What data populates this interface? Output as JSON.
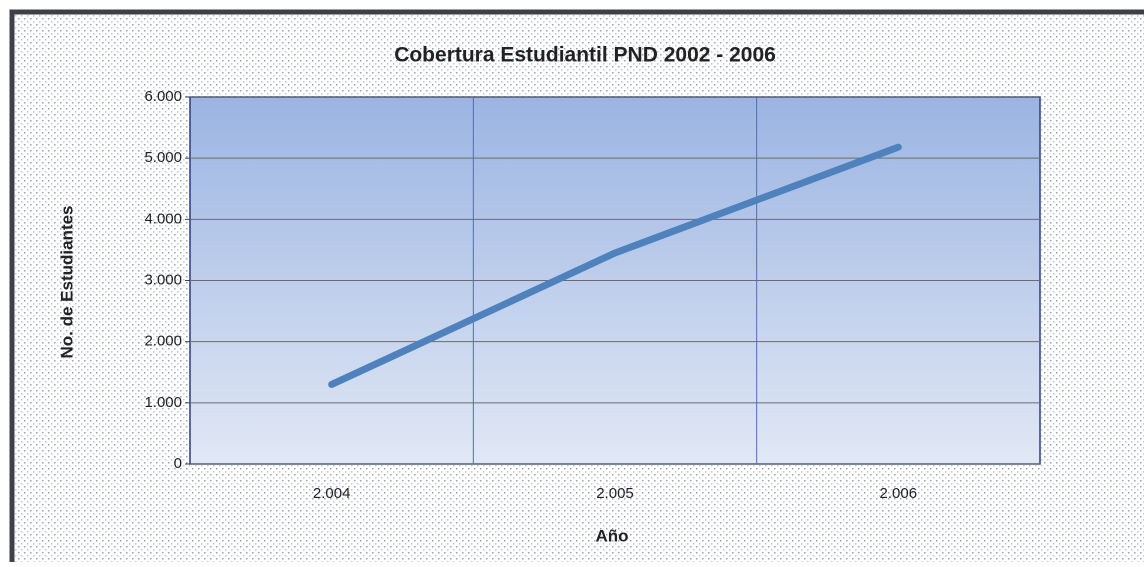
{
  "chart_data": {
    "type": "line",
    "title": "Cobertura Estudiantil PND 2002 - 2006",
    "x_label": "Año",
    "y_label": "No. de Estudiantes",
    "categories": [
      "2.004",
      "2.005",
      "2.006"
    ],
    "series": [
      {
        "name": "No. de Estudiantes",
        "color": "#4f81bd",
        "values": [
          1300,
          3450,
          5180
        ]
      }
    ],
    "ylim": [
      0,
      6000
    ],
    "yticks": [
      0,
      {
        "value": 1000,
        "label": "1.000"
      },
      {
        "value": 2000,
        "label": "2.000"
      },
      {
        "value": 3000,
        "label": "3.000"
      },
      {
        "value": 4000,
        "label": "4.000"
      },
      {
        "value": 5000,
        "label": "5.000"
      },
      {
        "value": 6000,
        "label": "6.000"
      }
    ],
    "grid": true
  }
}
